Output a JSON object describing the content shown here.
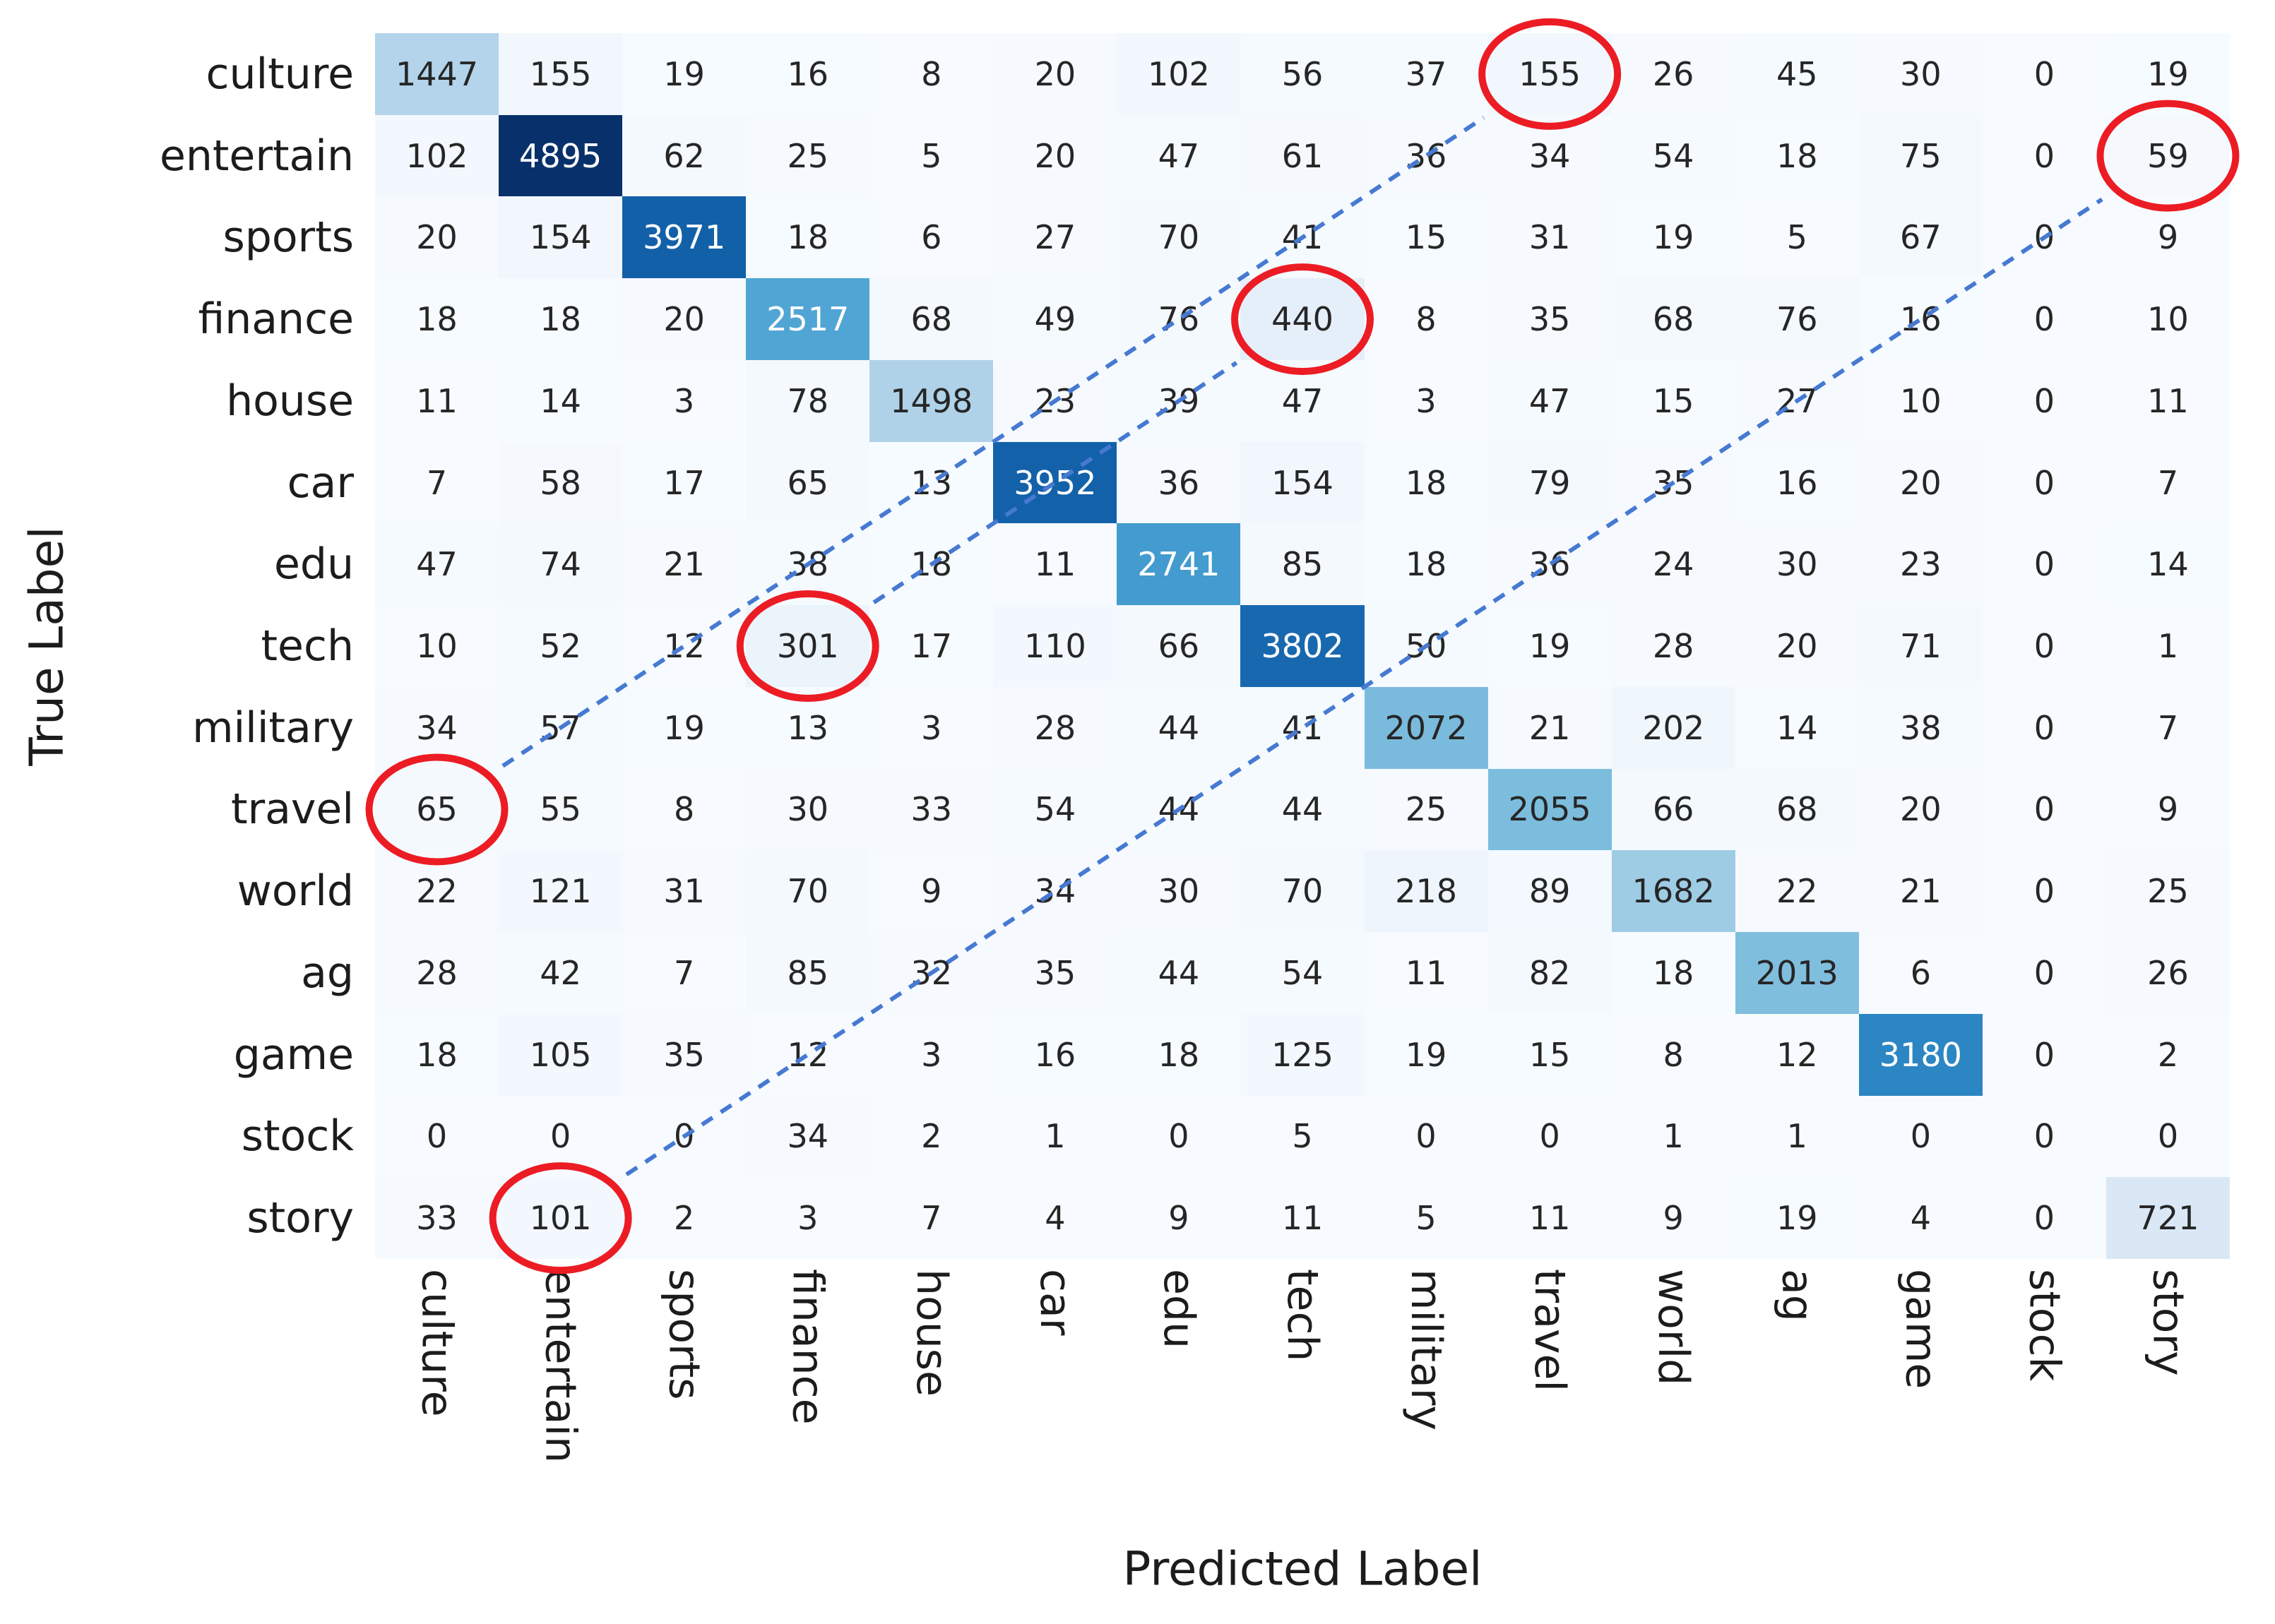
{
  "chart_data": {
    "type": "heatmap",
    "title": "",
    "xlabel": "Predicted Label",
    "ylabel": "True Label",
    "x_categories": [
      "culture",
      "entertain",
      "sports",
      "finance",
      "house",
      "car",
      "edu",
      "tech",
      "military",
      "travel",
      "world",
      "ag",
      "game",
      "stock",
      "story"
    ],
    "y_categories": [
      "culture",
      "entertain",
      "sports",
      "finance",
      "house",
      "car",
      "edu",
      "tech",
      "military",
      "travel",
      "world",
      "ag",
      "game",
      "stock",
      "story"
    ],
    "matrix": [
      [
        1447,
        155,
        19,
        16,
        8,
        20,
        102,
        56,
        37,
        155,
        26,
        45,
        30,
        0,
        19
      ],
      [
        102,
        4895,
        62,
        25,
        5,
        20,
        47,
        61,
        36,
        34,
        54,
        18,
        75,
        0,
        59
      ],
      [
        20,
        154,
        3971,
        18,
        6,
        27,
        70,
        41,
        15,
        31,
        19,
        5,
        67,
        0,
        9
      ],
      [
        18,
        18,
        20,
        2517,
        68,
        49,
        76,
        440,
        8,
        35,
        68,
        76,
        16,
        0,
        10
      ],
      [
        11,
        14,
        3,
        78,
        1498,
        23,
        39,
        47,
        3,
        47,
        15,
        27,
        10,
        0,
        11
      ],
      [
        7,
        58,
        17,
        65,
        13,
        3952,
        36,
        154,
        18,
        79,
        35,
        16,
        20,
        0,
        7
      ],
      [
        47,
        74,
        21,
        38,
        18,
        11,
        2741,
        85,
        18,
        36,
        24,
        30,
        23,
        0,
        14
      ],
      [
        10,
        52,
        12,
        301,
        17,
        110,
        66,
        3802,
        50,
        19,
        28,
        20,
        71,
        0,
        1
      ],
      [
        34,
        57,
        19,
        13,
        3,
        28,
        44,
        41,
        2072,
        21,
        202,
        14,
        38,
        0,
        7
      ],
      [
        65,
        55,
        8,
        30,
        33,
        54,
        44,
        44,
        25,
        2055,
        66,
        68,
        20,
        0,
        9
      ],
      [
        22,
        121,
        31,
        70,
        9,
        34,
        30,
        70,
        218,
        89,
        1682,
        22,
        21,
        0,
        25
      ],
      [
        28,
        42,
        7,
        85,
        32,
        35,
        44,
        54,
        11,
        82,
        18,
        2013,
        6,
        0,
        26
      ],
      [
        18,
        105,
        35,
        12,
        3,
        16,
        18,
        125,
        19,
        15,
        8,
        12,
        3180,
        0,
        2
      ],
      [
        0,
        0,
        0,
        34,
        2,
        1,
        0,
        5,
        0,
        0,
        1,
        1,
        0,
        0,
        0
      ],
      [
        33,
        101,
        2,
        3,
        7,
        4,
        9,
        11,
        5,
        11,
        9,
        19,
        4,
        0,
        721
      ]
    ],
    "vmin": 0,
    "vmax": 4895,
    "legend": "none",
    "grid": "off",
    "colormap": "Blues",
    "colormap_stops": [
      [
        0.0,
        "#f7fbff"
      ],
      [
        0.125,
        "#deebf7"
      ],
      [
        0.25,
        "#c6dbef"
      ],
      [
        0.375,
        "#92c7e1"
      ],
      [
        0.5,
        "#55a8d6"
      ],
      [
        0.625,
        "#308cc7"
      ],
      [
        0.75,
        "#1c6eb4"
      ],
      [
        0.875,
        "#08519c"
      ],
      [
        1.0,
        "#08306b"
      ]
    ],
    "value_text_dark": "#262626",
    "value_text_light": "#ffffff",
    "annotations": {
      "circle_color": "#ec1c24",
      "dash_color": "#4679d2",
      "circled_cells": [
        {
          "row": "culture",
          "col": "travel",
          "value": 155
        },
        {
          "row": "entertain",
          "col": "story",
          "value": 59
        },
        {
          "row": "finance",
          "col": "tech",
          "value": 440
        },
        {
          "row": "tech",
          "col": "finance",
          "value": 301
        },
        {
          "row": "travel",
          "col": "culture",
          "value": 65
        },
        {
          "row": "story",
          "col": "entertain",
          "value": 101
        }
      ],
      "dashed_pairs": [
        {
          "from": {
            "row": "travel",
            "col": "culture"
          },
          "to": {
            "row": "culture",
            "col": "travel"
          }
        },
        {
          "from": {
            "row": "story",
            "col": "entertain"
          },
          "to": {
            "row": "entertain",
            "col": "story"
          }
        },
        {
          "from": {
            "row": "tech",
            "col": "finance"
          },
          "to": {
            "row": "finance",
            "col": "tech"
          }
        }
      ]
    }
  }
}
